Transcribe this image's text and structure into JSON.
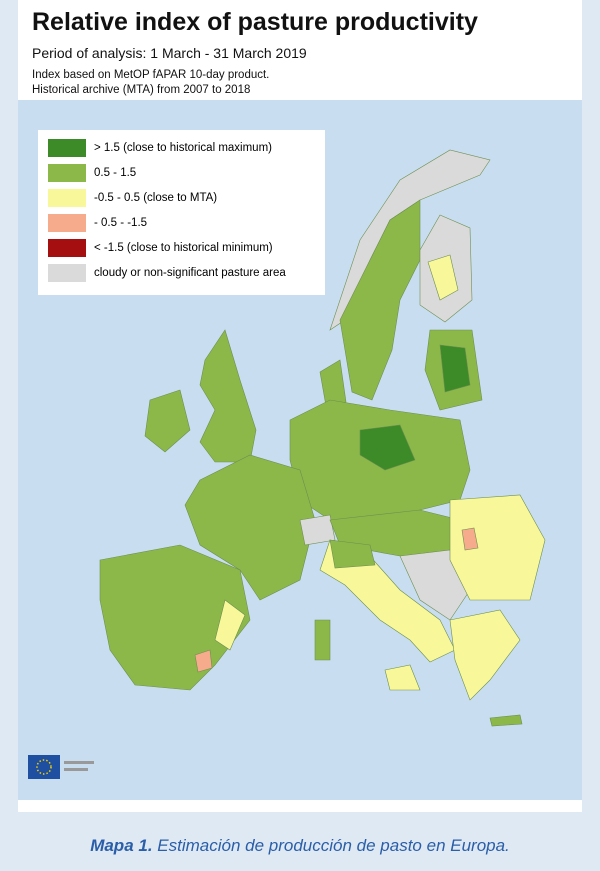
{
  "header": {
    "title": "Relative index of pasture productivity",
    "period": "Period of analysis: 1 March - 31 March 2019",
    "note_1": "Index based on MetOP fAPAR 10-day product.",
    "note_2": "Historical archive (MTA) from 2007  to 2018"
  },
  "legend": [
    {
      "label": "> 1.5 (close to historical maximum)",
      "color": "#3d8a28"
    },
    {
      "label": "0.5 - 1.5",
      "color": "#8cb84a"
    },
    {
      "label": "-0.5 - 0.5 (close to MTA)",
      "color": "#f8f89a"
    },
    {
      "label": "- 0.5 - -1.5",
      "color": "#f6ab8c"
    },
    {
      "label": "< -1.5 (close to historical minimum)",
      "color": "#a50f0f"
    },
    {
      "label": "cloudy or non-significant pasture area",
      "color": "#dadada"
    }
  ],
  "caption": {
    "label": "Mapa 1.",
    "text": "Estimación de producción de pasto en Europa."
  }
}
